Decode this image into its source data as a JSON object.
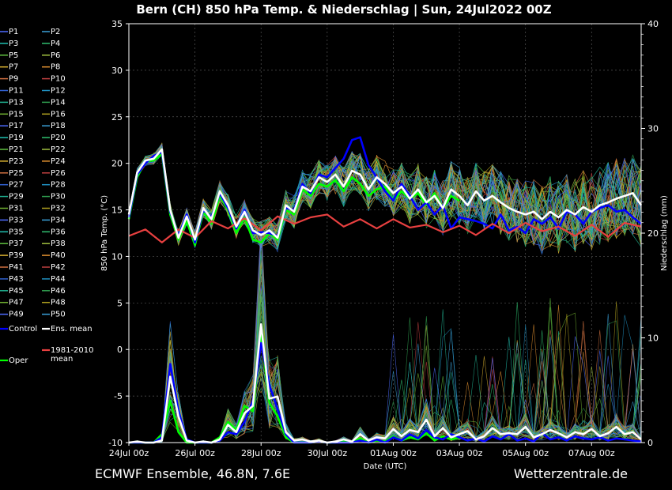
{
  "chart_data": {
    "type": "line",
    "title": "Bern  (CH)  850 hPa Temp. & Niederschlag | Sun, 24Jul2022 00Z",
    "xlabel": "Date (UTC)",
    "ylabel": "850 hPa Temp. (°C)",
    "y2label": "Niederschlag (mm)",
    "x_ticks": [
      "24Jul 00z",
      "26Jul 00z",
      "28Jul 00z",
      "30Jul 00z",
      "01Aug 00z",
      "03Aug 00z",
      "05Aug 00z",
      "07Aug 00z"
    ],
    "x_range_hours": [
      0,
      372
    ],
    "ylim": [
      -10,
      35
    ],
    "y_ticks": [
      -10,
      -5,
      0,
      5,
      10,
      15,
      20,
      25,
      30,
      35
    ],
    "y2lim": [
      0,
      40
    ],
    "y2_ticks": [
      0,
      10,
      20,
      30,
      40
    ],
    "legend_placement": "left",
    "legend": [
      "P1",
      "P2",
      "P3",
      "P4",
      "P5",
      "P6",
      "P7",
      "P8",
      "P9",
      "P10",
      "P11",
      "P12",
      "P13",
      "P14",
      "P15",
      "P16",
      "P17",
      "P18",
      "P19",
      "P20",
      "P21",
      "P22",
      "P23",
      "P24",
      "P25",
      "P26",
      "P27",
      "P28",
      "P29",
      "P30",
      "P31",
      "P32",
      "P33",
      "P34",
      "P35",
      "P36",
      "P37",
      "P38",
      "P39",
      "P40",
      "P41",
      "P42",
      "P43",
      "P44",
      "P45",
      "P46",
      "P47",
      "P48",
      "P49",
      "P50",
      "Control",
      "Ens. mean",
      "1981-2010 mean",
      "Oper"
    ],
    "colors": {
      "control": "#0000ff",
      "ens_mean": "#ffffff",
      "clim": "#e84040",
      "oper": "#00ff00",
      "members": [
        "#4d6bff",
        "#3aa0d8",
        "#20c0b0",
        "#30c070",
        "#60c040",
        "#a0c040",
        "#d8b030",
        "#e09030",
        "#d07040",
        "#c04040",
        "#3060d0",
        "#2090c0",
        "#20b090",
        "#30a050",
        "#70b030",
        "#b0a020"
      ]
    },
    "series": [
      {
        "name": "1981-2010 mean",
        "x": [
          0,
          12,
          24,
          36,
          48,
          60,
          72,
          84,
          96,
          108,
          120,
          132,
          144,
          156,
          168,
          180,
          192,
          204,
          216,
          228,
          240,
          252,
          264,
          276,
          288,
          300,
          312,
          324,
          336,
          348,
          360,
          372
        ],
        "values": [
          12.2,
          12.9,
          11.5,
          12.9,
          12.0,
          13.8,
          13.0,
          14.1,
          12.8,
          14.3,
          13.5,
          14.2,
          14.5,
          13.2,
          14.0,
          13.0,
          14.0,
          13.1,
          13.4,
          12.6,
          13.3,
          12.3,
          13.5,
          12.5,
          13.6,
          12.7,
          13.2,
          12.2,
          13.4,
          12.1,
          13.6,
          13.2
        ]
      },
      {
        "name": "Ens. mean",
        "x": [
          0,
          6,
          12,
          18,
          24,
          30,
          36,
          42,
          48,
          54,
          60,
          66,
          72,
          78,
          84,
          90,
          96,
          102,
          108,
          114,
          120,
          126,
          132,
          138,
          144,
          150,
          156,
          162,
          168,
          174,
          180,
          186,
          192,
          198,
          204,
          210,
          216,
          222,
          228,
          234,
          240,
          246,
          252,
          258,
          264,
          270,
          276,
          282,
          288,
          294,
          300,
          306,
          312,
          318,
          324,
          330,
          336,
          342,
          348,
          354,
          360,
          366,
          372
        ],
        "values": [
          14.5,
          19.0,
          20.3,
          20.5,
          21.5,
          15.0,
          12.0,
          14.3,
          11.8,
          15.2,
          14.0,
          17.0,
          15.5,
          13.2,
          14.8,
          12.8,
          12.3,
          12.8,
          12.0,
          15.5,
          14.8,
          17.5,
          17.0,
          18.5,
          18.0,
          18.8,
          17.5,
          19.2,
          18.8,
          17.2,
          18.5,
          17.8,
          16.8,
          17.5,
          16.2,
          17.2,
          15.8,
          16.5,
          15.2,
          17.2,
          16.5,
          15.5,
          17.0,
          16.0,
          16.5,
          15.8,
          15.2,
          14.8,
          14.5,
          14.8,
          14.0,
          14.8,
          14.2,
          15.0,
          14.5,
          15.3,
          14.8,
          15.5,
          15.8,
          16.2,
          16.5,
          16.8,
          15.5
        ]
      },
      {
        "name": "Control",
        "x": [
          0,
          6,
          12,
          18,
          24,
          30,
          36,
          42,
          48,
          54,
          60,
          66,
          72,
          78,
          84,
          90,
          96,
          102,
          108,
          114,
          120,
          126,
          132,
          138,
          144,
          150,
          156,
          162,
          168,
          174,
          180,
          186,
          192,
          198,
          204,
          210,
          216,
          222,
          228,
          234,
          240,
          246,
          252,
          258,
          264,
          270,
          276,
          282,
          288,
          294,
          300,
          306,
          312,
          318,
          324,
          330,
          336,
          342,
          348,
          354,
          360,
          366,
          372
        ],
        "values": [
          14.2,
          18.8,
          20.0,
          20.8,
          21.2,
          14.8,
          12.2,
          14.5,
          11.5,
          15.0,
          14.2,
          16.8,
          15.2,
          13.0,
          15.0,
          12.5,
          12.6,
          12.5,
          12.2,
          15.2,
          15.0,
          17.8,
          16.8,
          18.8,
          18.5,
          19.5,
          20.5,
          22.5,
          22.8,
          19.8,
          18.5,
          17.0,
          16.0,
          17.8,
          16.5,
          15.0,
          15.8,
          14.5,
          15.5,
          13.0,
          14.2,
          14.0,
          13.8,
          13.5,
          13.0,
          14.5,
          12.8,
          13.2,
          12.5,
          14.0,
          13.5,
          14.2,
          13.0,
          14.8,
          14.5,
          13.5,
          14.8,
          15.2,
          15.5,
          14.8,
          15.0,
          14.2,
          13.5
        ]
      },
      {
        "name": "Oper",
        "x": [
          0,
          6,
          12,
          18,
          24,
          30,
          36,
          42,
          48,
          54,
          60,
          66,
          72,
          78,
          84,
          90,
          96,
          102,
          108,
          114,
          120,
          126,
          132,
          138,
          144,
          150,
          156,
          162,
          168,
          174,
          180,
          186,
          192,
          198,
          204,
          210,
          216,
          222,
          228,
          234,
          240
        ],
        "values": [
          14.0,
          18.5,
          20.2,
          20.3,
          21.0,
          14.5,
          11.8,
          13.8,
          11.2,
          14.8,
          13.5,
          16.5,
          15.0,
          12.5,
          14.2,
          11.8,
          11.5,
          12.5,
          11.8,
          15.0,
          14.5,
          17.2,
          16.5,
          17.8,
          17.5,
          18.2,
          17.0,
          18.5,
          17.8,
          16.5,
          17.2,
          17.5,
          16.0,
          17.0,
          16.2,
          16.8,
          15.5,
          16.8,
          15.2,
          16.5,
          16.0
        ]
      }
    ],
    "precip_series": [
      {
        "name": "Ens. mean",
        "x": [
          0,
          6,
          12,
          18,
          24,
          30,
          36,
          42,
          48,
          54,
          60,
          66,
          72,
          78,
          84,
          90,
          96,
          102,
          108,
          114,
          120,
          126,
          132,
          138,
          144,
          150,
          156,
          162,
          168,
          174,
          180,
          186,
          192,
          198,
          204,
          210,
          216,
          222,
          228,
          234,
          240,
          246,
          252,
          258,
          264,
          270,
          276,
          282,
          288,
          294,
          300,
          306,
          312,
          318,
          324,
          330,
          336,
          342,
          348,
          354,
          360,
          366,
          372
        ],
        "values": [
          0,
          0.1,
          0,
          0,
          0.2,
          6.3,
          2.5,
          0.2,
          0,
          0.1,
          0,
          0.3,
          1.7,
          1.0,
          2.8,
          3.5,
          11.3,
          4.2,
          4.4,
          1.0,
          0.2,
          0.3,
          0.1,
          0.2,
          0,
          0.1,
          0.3,
          0.1,
          0.8,
          0.2,
          0.5,
          0.4,
          1.3,
          0.6,
          1.2,
          1.0,
          2.2,
          0.6,
          1.4,
          0.5,
          0.8,
          1.1,
          0.3,
          0.6,
          1.4,
          0.8,
          0.9,
          0.8,
          1.5,
          0.5,
          0.8,
          1.2,
          0.9,
          0.5,
          1.0,
          0.8,
          1.3,
          0.6,
          0.9,
          1.5,
          0.8,
          1.0,
          0.3
        ]
      },
      {
        "name": "Control",
        "x": [
          0,
          6,
          12,
          18,
          24,
          30,
          36,
          42,
          48,
          54,
          60,
          66,
          72,
          78,
          84,
          90,
          96,
          102,
          108,
          114,
          120,
          126,
          132,
          138,
          144,
          150,
          156,
          162,
          168,
          174,
          180,
          186,
          192,
          198,
          204,
          210,
          216,
          222,
          228,
          234,
          240,
          246,
          252,
          258,
          264,
          270,
          276,
          282,
          288,
          294,
          300,
          306,
          312,
          318,
          324,
          330,
          336,
          342,
          348,
          354,
          360,
          366,
          372
        ],
        "values": [
          0,
          0,
          0,
          0,
          0.5,
          7.5,
          3.0,
          0.3,
          0,
          0,
          0,
          0.2,
          1.0,
          0.8,
          2.0,
          4.0,
          9.5,
          5.5,
          3.2,
          0.8,
          0,
          0,
          0,
          0.1,
          0,
          0,
          0,
          0,
          0.2,
          0,
          0.3,
          0,
          0.5,
          0.2,
          0.8,
          0.4,
          1.2,
          0.5,
          0.3,
          0.8,
          0.5,
          0.2,
          0.4,
          0.1,
          0.6,
          0.3,
          0.8,
          0.2,
          0.4,
          0.1,
          0.9,
          0.3,
          0.5,
          0.2,
          0.6,
          0.4,
          0.3,
          0.5,
          0.2,
          0.4,
          0.3,
          0.2,
          0.1
        ]
      },
      {
        "name": "Oper",
        "x": [
          0,
          6,
          12,
          18,
          24,
          30,
          36,
          42,
          48,
          54,
          60,
          66,
          72,
          78,
          84,
          90,
          96,
          102,
          108,
          114,
          120,
          126,
          132,
          138,
          144,
          150,
          156,
          162,
          168,
          174,
          180,
          186,
          192,
          198,
          204,
          210,
          216,
          222,
          228,
          234,
          240
        ],
        "values": [
          0,
          0,
          0,
          0,
          0.8,
          4.0,
          1.0,
          0,
          0,
          0,
          0,
          0.5,
          2.0,
          1.2,
          3.5,
          3.0,
          10.5,
          3.8,
          2.5,
          0.5,
          0,
          0,
          0,
          0.1,
          0,
          0,
          0.2,
          0,
          0.4,
          0,
          0.2,
          0.1,
          0.6,
          0.2,
          0.5,
          0.3,
          0.9,
          0.2,
          0.6,
          0.3,
          0.5
        ]
      }
    ]
  },
  "footer": {
    "left": "ECMWF Ensemble, 46.8N, 7.6E",
    "right": "Wetterzentrale.de"
  }
}
